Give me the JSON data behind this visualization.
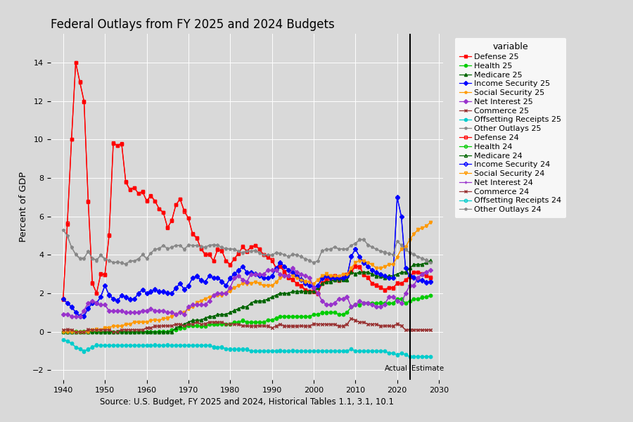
{
  "title": "Federal Outlays from FY 2025 and 2024 Budgets",
  "xlabel": "Source: U.S. Budget, FY 2025 and 2024, Historical Tables 1.1, 3.1, 10.1",
  "ylabel": "Percent of GDP",
  "bg_color": "#d9d9d9",
  "actual_year": 2023,
  "xlim": [
    1937,
    2031
  ],
  "ylim": [
    -2.5,
    15.5
  ],
  "yticks": [
    -2,
    0,
    2,
    4,
    6,
    8,
    10,
    12,
    14
  ],
  "xticks": [
    1940,
    1950,
    1960,
    1970,
    1980,
    1990,
    2000,
    2010,
    2020,
    2030
  ],
  "years": [
    1940,
    1941,
    1942,
    1943,
    1944,
    1945,
    1946,
    1947,
    1948,
    1949,
    1950,
    1951,
    1952,
    1953,
    1954,
    1955,
    1956,
    1957,
    1958,
    1959,
    1960,
    1961,
    1962,
    1963,
    1964,
    1965,
    1966,
    1967,
    1968,
    1969,
    1970,
    1971,
    1972,
    1973,
    1974,
    1975,
    1976,
    1977,
    1978,
    1979,
    1980,
    1981,
    1982,
    1983,
    1984,
    1985,
    1986,
    1987,
    1988,
    1989,
    1990,
    1991,
    1992,
    1993,
    1994,
    1995,
    1996,
    1997,
    1998,
    1999,
    2000,
    2001,
    2002,
    2003,
    2004,
    2005,
    2006,
    2007,
    2008,
    2009,
    2010,
    2011,
    2012,
    2013,
    2014,
    2015,
    2016,
    2017,
    2018,
    2019,
    2020,
    2021,
    2022,
    2023,
    2024,
    2025,
    2026,
    2027,
    2028
  ],
  "defense_25": [
    1.7,
    5.6,
    10.0,
    14.0,
    13.0,
    12.0,
    6.8,
    2.5,
    2.0,
    3.0,
    3.0,
    5.0,
    9.8,
    9.7,
    9.8,
    7.8,
    7.4,
    7.5,
    7.2,
    7.3,
    6.8,
    7.1,
    6.8,
    6.4,
    6.2,
    5.4,
    5.8,
    6.6,
    6.9,
    6.3,
    5.9,
    5.1,
    4.9,
    4.3,
    4.0,
    4.0,
    3.7,
    4.3,
    4.2,
    3.7,
    3.5,
    3.8,
    4.1,
    4.4,
    4.2,
    4.4,
    4.5,
    4.3,
    4.0,
    3.9,
    3.7,
    3.3,
    3.4,
    3.1,
    2.8,
    2.7,
    2.5,
    2.4,
    2.2,
    2.1,
    2.1,
    2.0,
    2.5,
    2.7,
    2.8,
    2.9,
    2.7,
    2.8,
    3.0,
    3.1,
    3.4,
    3.4,
    3.0,
    2.8,
    2.5,
    2.4,
    2.3,
    2.2,
    2.3,
    2.3,
    2.5,
    2.5,
    2.7,
    2.9,
    3.1,
    3.1,
    3.0,
    2.9,
    2.8
  ],
  "health_25": [
    0.0,
    0.0,
    0.0,
    0.0,
    0.0,
    0.0,
    0.0,
    0.0,
    0.0,
    0.0,
    0.0,
    0.0,
    0.0,
    0.0,
    0.0,
    0.0,
    0.0,
    0.0,
    0.0,
    0.0,
    0.0,
    0.0,
    0.0,
    0.0,
    0.0,
    0.0,
    0.1,
    0.1,
    0.2,
    0.2,
    0.3,
    0.3,
    0.3,
    0.3,
    0.3,
    0.4,
    0.4,
    0.4,
    0.4,
    0.4,
    0.4,
    0.5,
    0.5,
    0.6,
    0.5,
    0.5,
    0.5,
    0.5,
    0.5,
    0.6,
    0.6,
    0.7,
    0.8,
    0.8,
    0.8,
    0.8,
    0.8,
    0.8,
    0.8,
    0.8,
    0.9,
    0.9,
    1.0,
    1.0,
    1.0,
    1.0,
    0.9,
    0.9,
    1.0,
    1.3,
    1.4,
    1.4,
    1.5,
    1.5,
    1.5,
    1.5,
    1.5,
    1.5,
    1.5,
    1.5,
    1.7,
    1.7,
    1.5,
    1.6,
    1.7,
    1.7,
    1.8,
    1.8,
    1.9
  ],
  "medicare_25": [
    0.0,
    0.0,
    0.0,
    0.0,
    0.0,
    0.0,
    0.0,
    0.0,
    0.0,
    0.0,
    0.0,
    0.0,
    0.0,
    0.0,
    0.0,
    0.0,
    0.0,
    0.0,
    0.0,
    0.0,
    0.0,
    0.0,
    0.0,
    0.0,
    0.0,
    0.0,
    0.0,
    0.2,
    0.3,
    0.4,
    0.5,
    0.6,
    0.6,
    0.6,
    0.7,
    0.8,
    0.8,
    0.9,
    0.9,
    0.9,
    1.0,
    1.1,
    1.2,
    1.3,
    1.3,
    1.5,
    1.6,
    1.6,
    1.6,
    1.7,
    1.8,
    1.9,
    2.0,
    2.0,
    2.0,
    2.1,
    2.1,
    2.1,
    2.1,
    2.1,
    2.1,
    2.3,
    2.5,
    2.6,
    2.6,
    2.7,
    2.7,
    2.7,
    2.7,
    3.1,
    3.0,
    3.1,
    3.1,
    3.1,
    3.0,
    2.9,
    2.9,
    2.8,
    2.9,
    2.9,
    3.0,
    3.1,
    3.1,
    3.3,
    3.5,
    3.5,
    3.5,
    3.6,
    3.7
  ],
  "income_security_25": [
    1.7,
    1.5,
    1.3,
    1.0,
    0.8,
    0.8,
    1.2,
    1.5,
    1.5,
    1.8,
    2.4,
    1.9,
    1.7,
    1.6,
    1.9,
    1.8,
    1.7,
    1.7,
    2.0,
    2.2,
    2.0,
    2.1,
    2.2,
    2.1,
    2.1,
    2.0,
    2.0,
    2.3,
    2.5,
    2.2,
    2.4,
    2.8,
    2.9,
    2.7,
    2.6,
    2.9,
    2.8,
    2.8,
    2.6,
    2.4,
    2.8,
    3.0,
    3.2,
    3.4,
    3.1,
    3.1,
    3.0,
    2.9,
    2.8,
    2.8,
    2.9,
    3.3,
    3.6,
    3.4,
    3.2,
    3.1,
    2.9,
    2.7,
    2.5,
    2.4,
    2.3,
    2.4,
    2.8,
    2.9,
    2.8,
    2.8,
    2.8,
    2.8,
    2.9,
    3.9,
    4.3,
    3.9,
    3.6,
    3.4,
    3.2,
    3.1,
    3.0,
    2.9,
    2.8,
    2.8,
    7.0,
    6.0,
    3.3,
    2.9,
    2.8,
    2.7,
    2.7,
    2.6,
    2.6
  ],
  "social_security_25": [
    0.0,
    0.0,
    0.0,
    0.0,
    0.0,
    0.0,
    0.0,
    0.1,
    0.1,
    0.1,
    0.2,
    0.2,
    0.3,
    0.3,
    0.3,
    0.4,
    0.4,
    0.5,
    0.5,
    0.5,
    0.5,
    0.6,
    0.6,
    0.6,
    0.7,
    0.7,
    0.8,
    0.9,
    1.0,
    1.0,
    1.2,
    1.3,
    1.5,
    1.6,
    1.7,
    1.8,
    1.9,
    1.9,
    1.9,
    2.0,
    2.1,
    2.3,
    2.4,
    2.5,
    2.5,
    2.5,
    2.6,
    2.5,
    2.4,
    2.4,
    2.4,
    2.6,
    2.8,
    2.9,
    2.9,
    2.9,
    2.8,
    2.7,
    2.6,
    2.6,
    2.5,
    2.7,
    2.9,
    3.0,
    2.9,
    2.9,
    2.9,
    3.0,
    3.0,
    3.3,
    3.6,
    3.7,
    3.7,
    3.6,
    3.5,
    3.3,
    3.3,
    3.4,
    3.5,
    3.5,
    3.9,
    4.3,
    4.4,
    4.8,
    5.1,
    5.3,
    5.4,
    5.5,
    5.7
  ],
  "net_interest_25": [
    0.9,
    0.9,
    0.8,
    0.8,
    0.8,
    1.1,
    1.5,
    1.6,
    1.5,
    1.4,
    1.4,
    1.1,
    1.1,
    1.1,
    1.1,
    1.0,
    1.0,
    1.0,
    1.0,
    1.1,
    1.1,
    1.2,
    1.1,
    1.1,
    1.1,
    1.0,
    1.0,
    0.9,
    1.0,
    0.9,
    1.3,
    1.4,
    1.4,
    1.4,
    1.4,
    1.6,
    1.9,
    2.0,
    2.0,
    2.0,
    2.3,
    2.8,
    2.9,
    2.7,
    2.6,
    3.0,
    3.0,
    3.0,
    3.0,
    3.2,
    3.2,
    3.2,
    3.0,
    2.9,
    2.9,
    3.3,
    3.1,
    3.0,
    2.9,
    2.8,
    2.3,
    2.0,
    1.6,
    1.4,
    1.4,
    1.5,
    1.7,
    1.7,
    1.8,
    1.3,
    1.4,
    1.6,
    1.5,
    1.5,
    1.4,
    1.3,
    1.3,
    1.4,
    1.8,
    1.8,
    1.6,
    1.5,
    2.0,
    2.4,
    2.4,
    2.8,
    3.0,
    3.1,
    3.2
  ],
  "commerce_25": [
    0.1,
    0.1,
    0.1,
    0.0,
    0.0,
    0.0,
    0.1,
    0.1,
    0.1,
    0.1,
    0.1,
    0.1,
    0.0,
    0.0,
    0.1,
    0.1,
    0.1,
    0.1,
    0.1,
    0.1,
    0.2,
    0.2,
    0.3,
    0.3,
    0.3,
    0.3,
    0.3,
    0.4,
    0.4,
    0.3,
    0.4,
    0.4,
    0.5,
    0.4,
    0.4,
    0.5,
    0.5,
    0.5,
    0.5,
    0.4,
    0.4,
    0.4,
    0.4,
    0.3,
    0.3,
    0.3,
    0.3,
    0.3,
    0.3,
    0.3,
    0.2,
    0.3,
    0.4,
    0.3,
    0.3,
    0.3,
    0.3,
    0.3,
    0.3,
    0.3,
    0.4,
    0.4,
    0.4,
    0.4,
    0.4,
    0.4,
    0.3,
    0.3,
    0.4,
    0.7,
    0.6,
    0.5,
    0.5,
    0.4,
    0.4,
    0.4,
    0.3,
    0.3,
    0.3,
    0.3,
    0.4,
    0.3,
    0.1,
    0.1,
    0.1,
    0.1,
    0.1,
    0.1,
    0.1
  ],
  "offsetting_25": [
    -0.4,
    -0.5,
    -0.6,
    -0.8,
    -0.9,
    -1.0,
    -0.9,
    -0.8,
    -0.7,
    -0.7,
    -0.7,
    -0.7,
    -0.7,
    -0.7,
    -0.7,
    -0.7,
    -0.7,
    -0.7,
    -0.7,
    -0.7,
    -0.7,
    -0.7,
    -0.7,
    -0.7,
    -0.7,
    -0.7,
    -0.7,
    -0.7,
    -0.7,
    -0.7,
    -0.7,
    -0.7,
    -0.7,
    -0.7,
    -0.7,
    -0.7,
    -0.8,
    -0.8,
    -0.8,
    -0.9,
    -0.9,
    -0.9,
    -0.9,
    -0.9,
    -0.9,
    -1.0,
    -1.0,
    -1.0,
    -1.0,
    -1.0,
    -1.0,
    -1.0,
    -1.0,
    -1.0,
    -1.0,
    -1.0,
    -1.0,
    -1.0,
    -1.0,
    -1.0,
    -1.0,
    -1.0,
    -1.0,
    -1.0,
    -1.0,
    -1.0,
    -1.0,
    -1.0,
    -1.0,
    -0.9,
    -1.0,
    -1.0,
    -1.0,
    -1.0,
    -1.0,
    -1.0,
    -1.0,
    -1.0,
    -1.1,
    -1.1,
    -1.2,
    -1.1,
    -1.2,
    -1.3,
    -1.3,
    -1.3,
    -1.3,
    -1.3,
    -1.3
  ],
  "other_outlays_25": [
    5.3,
    5.0,
    4.4,
    4.0,
    3.8,
    3.8,
    4.2,
    3.8,
    3.7,
    4.0,
    3.8,
    3.7,
    3.6,
    3.6,
    3.6,
    3.5,
    3.7,
    3.7,
    3.8,
    4.0,
    3.8,
    4.1,
    4.3,
    4.3,
    4.5,
    4.3,
    4.4,
    4.5,
    4.5,
    4.3,
    4.5,
    4.5,
    4.5,
    4.4,
    4.4,
    4.5,
    4.5,
    4.5,
    4.4,
    4.3,
    4.3,
    4.3,
    4.2,
    4.1,
    4.2,
    4.2,
    4.2,
    4.1,
    4.0,
    4.0,
    4.0,
    4.1,
    4.1,
    4.0,
    3.9,
    4.0,
    4.0,
    3.9,
    3.8,
    3.7,
    3.6,
    3.7,
    4.2,
    4.3,
    4.3,
    4.4,
    4.3,
    4.3,
    4.3,
    4.5,
    4.6,
    4.8,
    4.8,
    4.5,
    4.4,
    4.3,
    4.2,
    4.1,
    4.1,
    4.0,
    4.7,
    4.5,
    4.3,
    4.1,
    4.0,
    3.9,
    3.8,
    3.7,
    3.6
  ],
  "colors": {
    "defense": "#FF0000",
    "health": "#00CC00",
    "medicare": "#006600",
    "income_security": "#0000FF",
    "social_security": "#FF9900",
    "net_interest": "#9933CC",
    "commerce": "#993333",
    "offsetting": "#00CCCC",
    "other_outlays": "#888888"
  }
}
